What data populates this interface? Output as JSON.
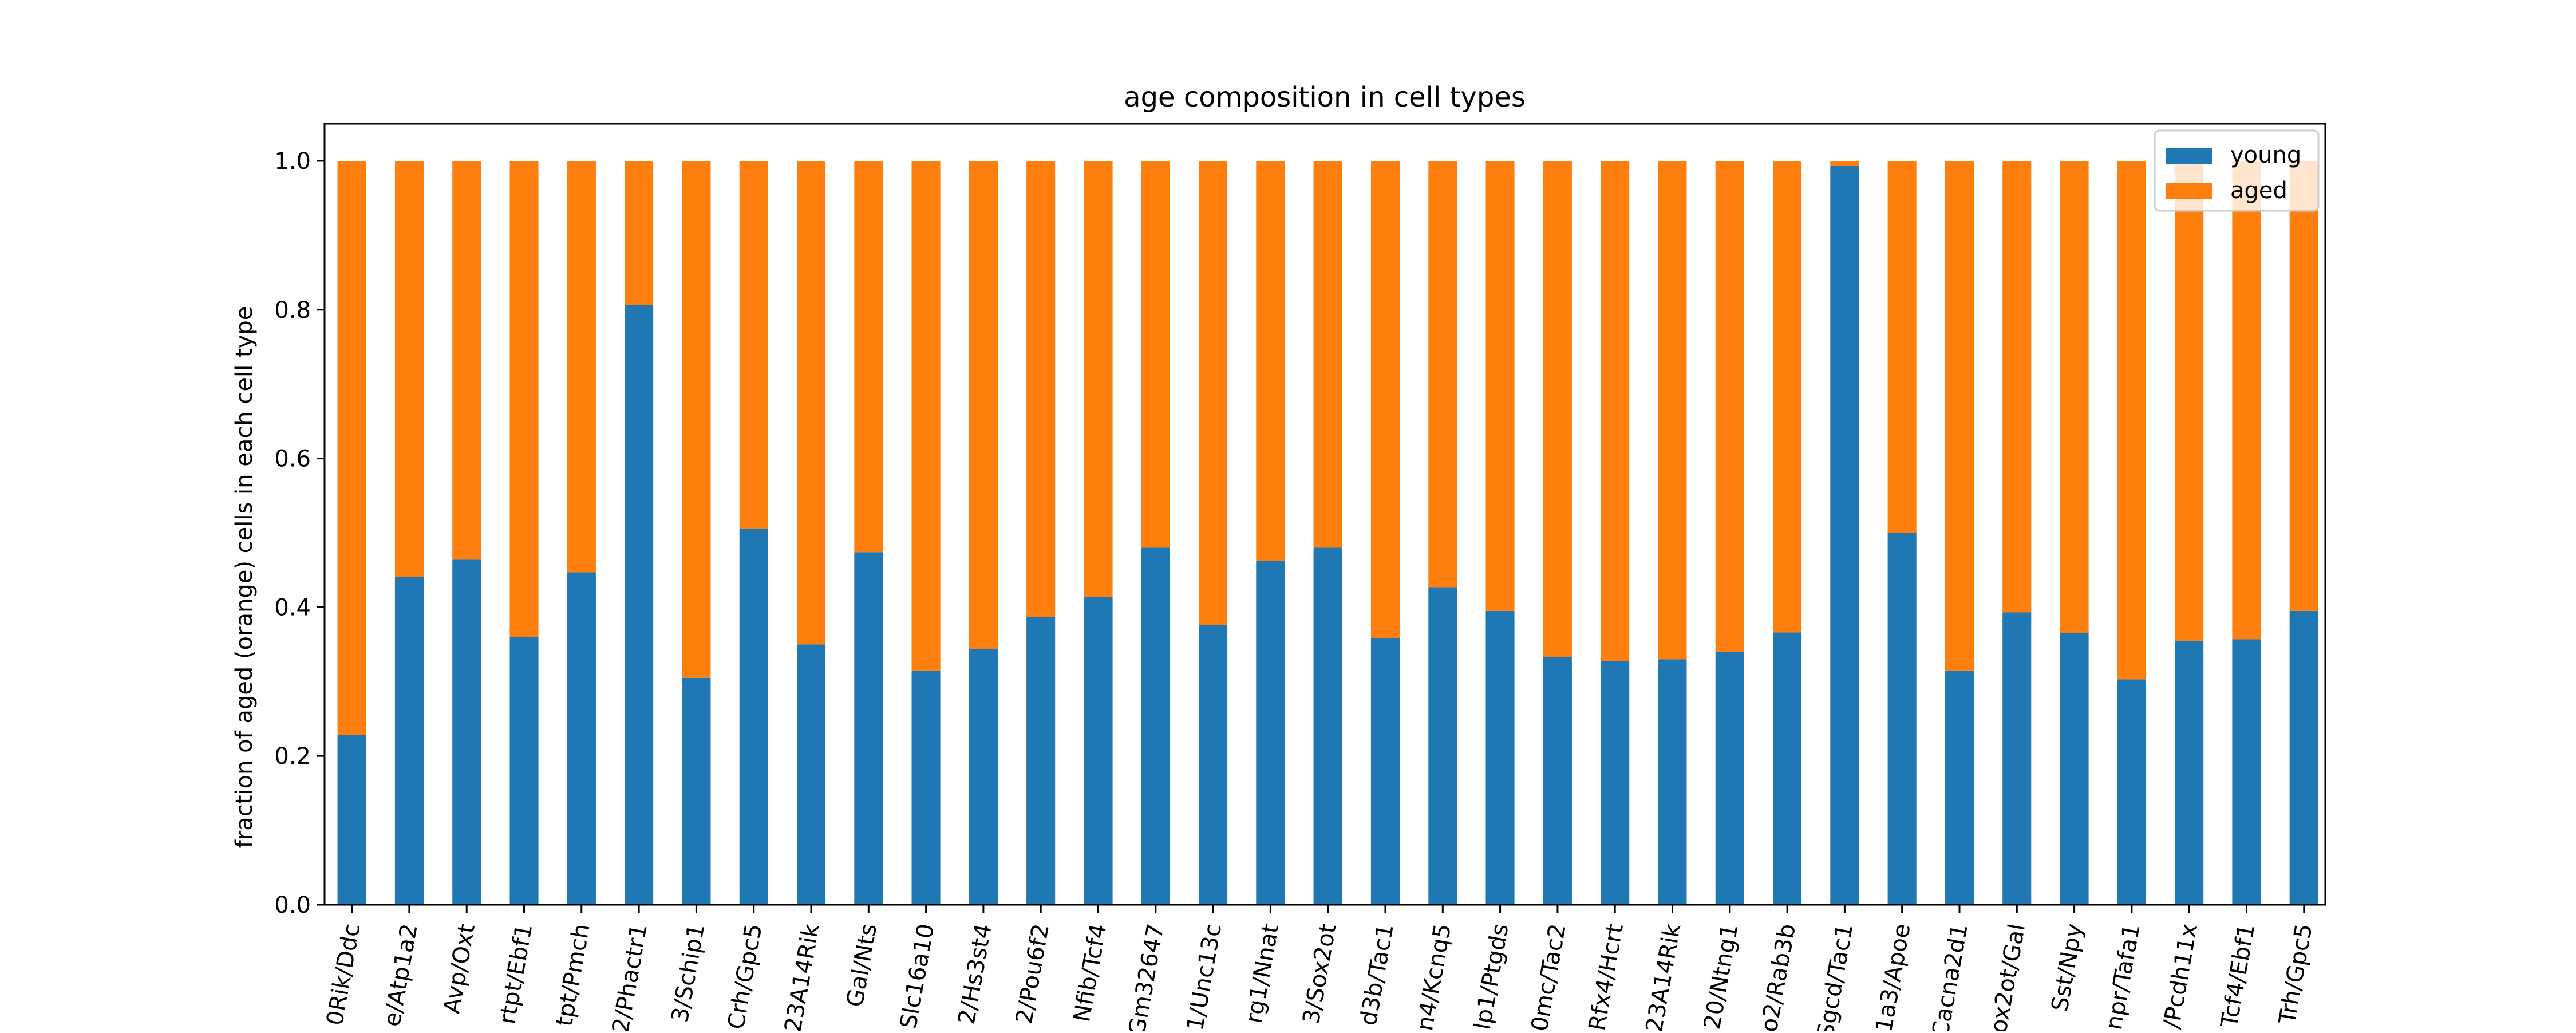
{
  "chart_data": {
    "type": "bar",
    "stacked": true,
    "title": "age composition in cell types",
    "xlabel": "",
    "ylabel": "fraction of aged (orange) cells in each cell type",
    "ylim": [
      0,
      1.05
    ],
    "yticks": [
      "0.0",
      "0.2",
      "0.4",
      "0.6",
      "0.8",
      "1.0"
    ],
    "grid": false,
    "legend_position": "top-right",
    "categories": [
      "0Rik/Ddc",
      "e/Atp1a2",
      "Avp/Oxt",
      "rtpt/Ebf1",
      "tpt/Pmch",
      "2/Phactr1",
      "3/Schip1",
      "Crh/Gpc5",
      "23A14Rik",
      "Gal/Nts",
      "Slc16a10",
      "2/Hs3st4",
      "2/Pou6f2",
      "Nfib/Tcf4",
      "Gm32647",
      "1/Unc13c",
      "rg1/Nnat",
      "3/Sox2ot",
      "d3b/Tac1",
      "n4/Kcnq5",
      "lp1/Ptgds",
      "0mc/Tac2",
      "Rfx4/Hcrt",
      "23A14Rik",
      "20/Ntng1",
      "o2/Rab3b",
      "Sgcd/Tac1",
      "1a3/Apoe",
      "Cacna2d1",
      "ox2ot/Gal",
      "Sst/Npy",
      "npr/Tafa1",
      "/Pcdh11x",
      "Tcf4/Ebf1",
      "Trh/Gpc5"
    ],
    "series": [
      {
        "name": "young",
        "color": "#1f77b4",
        "values": [
          0.228,
          0.441,
          0.464,
          0.36,
          0.447,
          0.806,
          0.305,
          0.506,
          0.35,
          0.474,
          0.315,
          0.344,
          0.387,
          0.414,
          0.48,
          0.376,
          0.462,
          0.48,
          0.358,
          0.427,
          0.395,
          0.333,
          0.328,
          0.33,
          0.34,
          0.366,
          0.993,
          0.5,
          0.315,
          0.393,
          0.365,
          0.303,
          0.355,
          0.357,
          0.395
        ]
      },
      {
        "name": "aged",
        "color": "#ff7f0e",
        "values": [
          0.772,
          0.559,
          0.536,
          0.64,
          0.553,
          0.194,
          0.695,
          0.494,
          0.65,
          0.526,
          0.685,
          0.656,
          0.613,
          0.586,
          0.52,
          0.624,
          0.538,
          0.52,
          0.642,
          0.573,
          0.605,
          0.667,
          0.672,
          0.67,
          0.66,
          0.634,
          0.007,
          0.5,
          0.685,
          0.607,
          0.635,
          0.697,
          0.645,
          0.643,
          0.605
        ]
      }
    ]
  }
}
